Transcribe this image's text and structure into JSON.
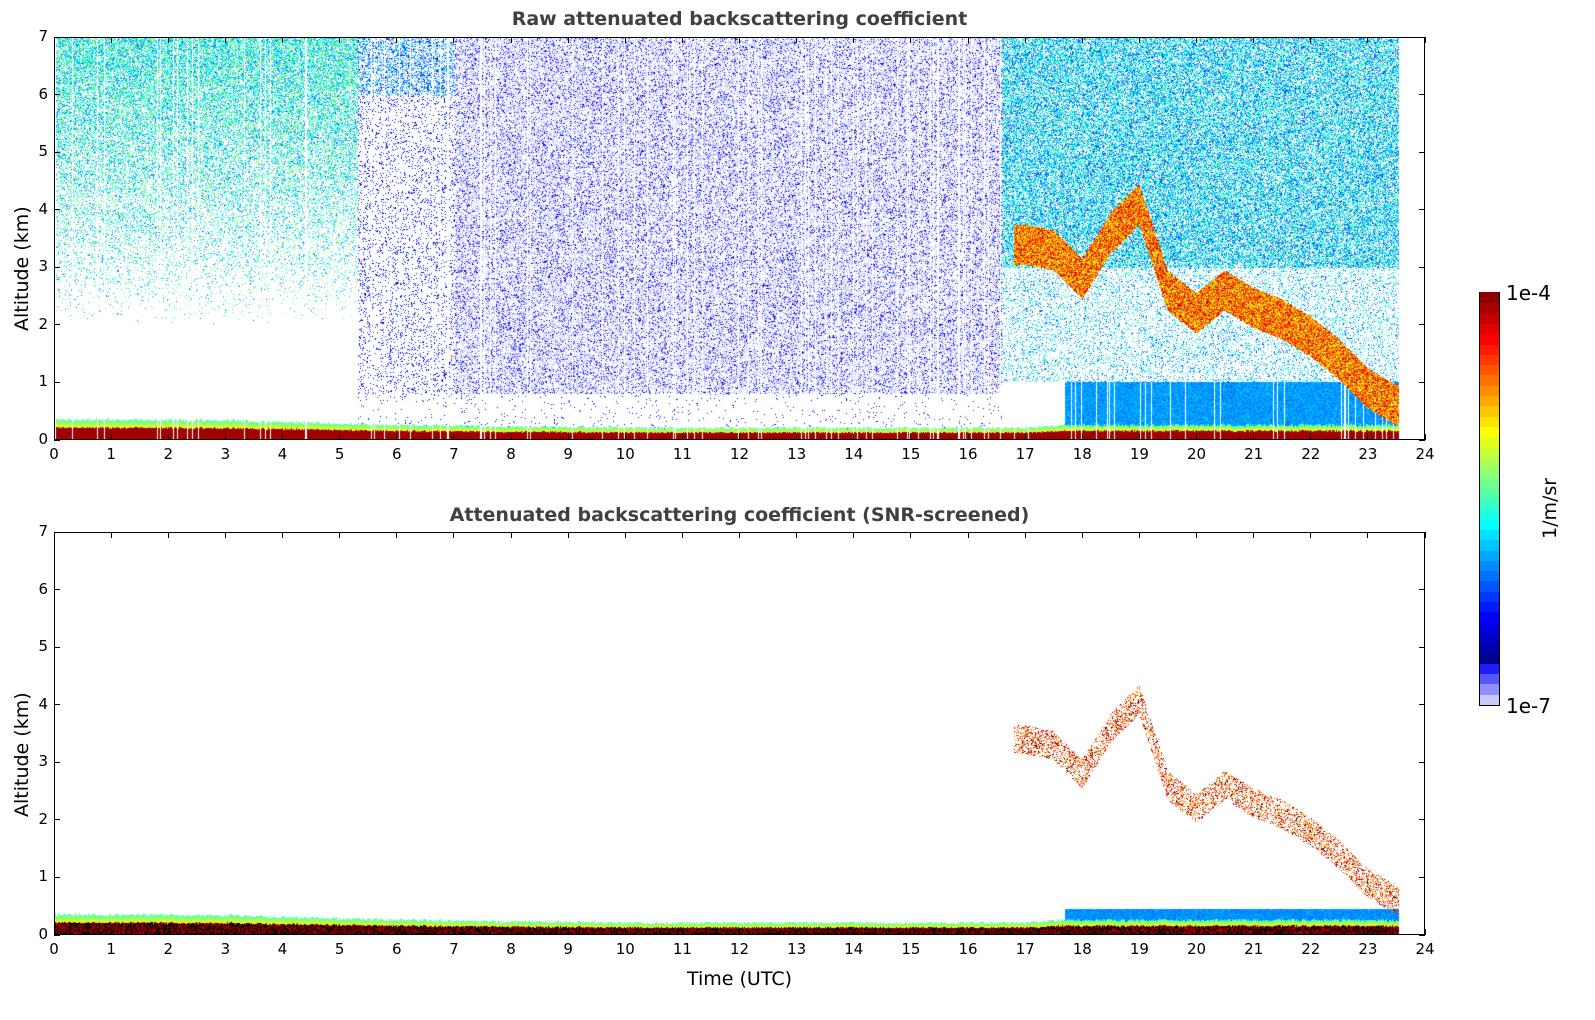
{
  "chart_data": [
    {
      "type": "heatmap",
      "title": "Raw attenuated backscattering coefficient",
      "xlabel": "",
      "ylabel": "Altitude (km)",
      "xlim": [
        0,
        24
      ],
      "ylim": [
        0,
        7
      ],
      "xticks": [
        "0",
        "1",
        "2",
        "3",
        "4",
        "5",
        "6",
        "7",
        "8",
        "9",
        "10",
        "11",
        "12",
        "13",
        "14",
        "15",
        "16",
        "17",
        "18",
        "19",
        "20",
        "21",
        "22",
        "23",
        "24"
      ],
      "yticks": [
        "0",
        "1",
        "2",
        "3",
        "4",
        "5",
        "6",
        "7"
      ],
      "data_end_time": 23.55,
      "aerosol_layer_top_km": {
        "x": [
          0,
          3,
          6,
          10,
          14,
          17,
          17.7
        ],
        "y": [
          0.35,
          0.33,
          0.25,
          0.2,
          0.2,
          0.2,
          0.25
        ]
      },
      "cloud_layer_km": {
        "x": [
          17,
          17.5,
          18,
          18.5,
          19,
          19.5,
          20,
          20.5,
          21,
          21.5,
          22,
          22.5,
          23,
          23.5
        ],
        "y": [
          3.4,
          3.3,
          2.8,
          3.6,
          4.1,
          2.6,
          2.2,
          2.6,
          2.3,
          2.1,
          1.8,
          1.4,
          0.9,
          0.6
        ]
      }
    },
    {
      "type": "heatmap",
      "title": "Attenuated backscattering coefficient (SNR-screened)",
      "xlabel": "Time (UTC)",
      "ylabel": "Altitude (km)",
      "xlim": [
        0,
        24
      ],
      "ylim": [
        0,
        7
      ],
      "xticks": [
        "0",
        "1",
        "2",
        "3",
        "4",
        "5",
        "6",
        "7",
        "8",
        "9",
        "10",
        "11",
        "12",
        "13",
        "14",
        "15",
        "16",
        "17",
        "18",
        "19",
        "20",
        "21",
        "22",
        "23",
        "24"
      ],
      "yticks": [
        "0",
        "1",
        "2",
        "3",
        "4",
        "5",
        "6",
        "7"
      ],
      "data_end_time": 23.55
    }
  ],
  "colorbar": {
    "label": "1/m/sr",
    "max_label": "1e-4",
    "min_label": "1e-7",
    "scale": "log",
    "range": [
      1e-07,
      0.0001
    ]
  }
}
